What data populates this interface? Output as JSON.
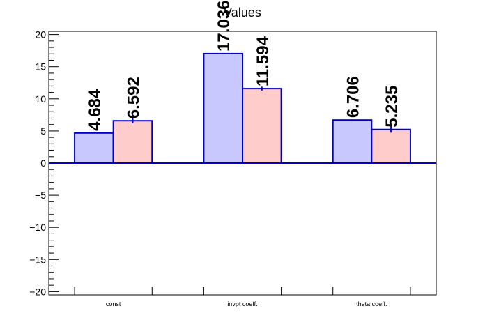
{
  "chart_data": {
    "type": "bar",
    "title": "Values",
    "categories": [
      "const",
      "invpt coeff.",
      "theta coeff."
    ],
    "series": [
      {
        "values": [
          4.684,
          17.036,
          6.706
        ],
        "errors": [
          0.0,
          0.0,
          0.0
        ],
        "labels": [
          "4.684",
          "17.036",
          "6.706"
        ],
        "fill": "#c8c8ff",
        "stroke": "#0000cc"
      },
      {
        "values": [
          6.592,
          11.594,
          5.235
        ],
        "errors": [
          0.4,
          0.3,
          0.5
        ],
        "labels": [
          "6.592",
          "11.594",
          "5.235"
        ],
        "fill": "#ffcccc",
        "stroke": "#0000cc"
      }
    ],
    "ylim": [
      -20.5,
      20.5
    ],
    "yticks": [
      -20,
      -15,
      -10,
      -5,
      0,
      5,
      10,
      15,
      20
    ],
    "ytick_labels": [
      "−20",
      "−15",
      "−10",
      "−5",
      "0",
      "5",
      "10",
      "15",
      "20"
    ],
    "grid": false,
    "baseline_color": "#0000cc"
  }
}
